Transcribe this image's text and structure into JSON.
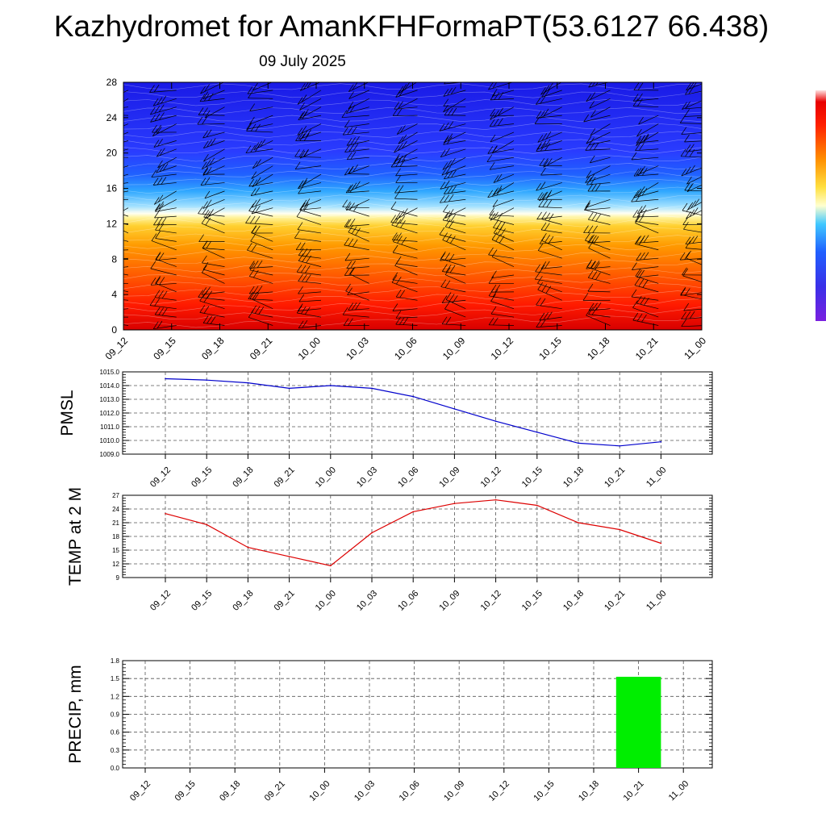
{
  "title": "Kazhydromet for AmanKFHFormaPT(53.6127 66.438)",
  "subtitle": "09 July 2025",
  "time_labels": [
    "09_12",
    "09_15",
    "09_18",
    "09_21",
    "10_00",
    "10_03",
    "10_06",
    "10_09",
    "10_12",
    "10_15",
    "10_18",
    "10_21",
    "11_00"
  ],
  "chart_data": [
    {
      "type": "heatmap",
      "title": "",
      "xlabel": "",
      "ylabel": "",
      "x": [
        "09_12",
        "09_15",
        "09_18",
        "09_21",
        "10_00",
        "10_03",
        "10_06",
        "10_09",
        "10_12",
        "10_15",
        "10_18",
        "10_21",
        "11_00"
      ],
      "y_ticks": [
        0,
        4,
        8,
        12,
        16,
        20,
        24,
        28
      ],
      "ylim": [
        0,
        28
      ],
      "colorbar_colors": [
        "#e8e8ff",
        "#ff0000",
        "#ff4a00",
        "#ff8800",
        "#ffc000",
        "#fff040",
        "#ffffc0",
        "#40c8ff",
        "#2090ff",
        "#2050ff",
        "#3030e0",
        "#5020e0",
        "#8020e0"
      ],
      "wind_barbs": true
    },
    {
      "type": "line",
      "title": "",
      "xlabel": "",
      "ylabel": "PMSL",
      "x": [
        "09_12",
        "09_15",
        "09_18",
        "09_21",
        "10_00",
        "10_03",
        "10_06",
        "10_09",
        "10_12",
        "10_15",
        "10_18",
        "10_21",
        "11_00"
      ],
      "values": [
        1014.5,
        1014.4,
        1014.2,
        1013.8,
        1014.0,
        1013.8,
        1013.2,
        1012.3,
        1011.4,
        1010.6,
        1009.8,
        1009.6,
        1009.9
      ],
      "y_ticks": [
        "1009.0",
        "1010.0",
        "1011.0",
        "1012.0",
        "1013.0",
        "1014.0",
        "1015.0"
      ],
      "ylim": [
        1009,
        1015
      ],
      "color": "#0000cc",
      "grid": true
    },
    {
      "type": "line",
      "title": "",
      "xlabel": "",
      "ylabel": "TEMP at 2 M",
      "x": [
        "09_12",
        "09_15",
        "09_18",
        "09_21",
        "10_00",
        "10_03",
        "10_06",
        "10_09",
        "10_12",
        "10_15",
        "10_18",
        "10_21",
        "11_00"
      ],
      "values": [
        23.0,
        20.6,
        15.6,
        13.6,
        11.6,
        18.8,
        23.4,
        25.2,
        26.0,
        24.8,
        21.0,
        19.5,
        16.5
      ],
      "y_ticks": [
        "9",
        "12",
        "15",
        "18",
        "21",
        "24",
        "27"
      ],
      "ylim": [
        9,
        27
      ],
      "color": "#dd0000",
      "grid": true
    },
    {
      "type": "bar",
      "title": "",
      "xlabel": "",
      "ylabel": "PRECIP, mm",
      "x": [
        "09_12",
        "09_15",
        "09_18",
        "09_21",
        "10_00",
        "10_03",
        "10_06",
        "10_09",
        "10_12",
        "10_15",
        "10_18",
        "10_21",
        "11_00"
      ],
      "values": [
        0,
        0,
        0,
        0,
        0,
        0,
        0,
        0,
        0,
        0,
        0,
        1.53,
        0
      ],
      "y_ticks": [
        "0.0",
        "0.3",
        "0.6",
        "0.9",
        "1.2",
        "1.5",
        "1.8"
      ],
      "ylim": [
        0,
        1.8
      ],
      "color": "#00ee00",
      "grid": true
    }
  ]
}
